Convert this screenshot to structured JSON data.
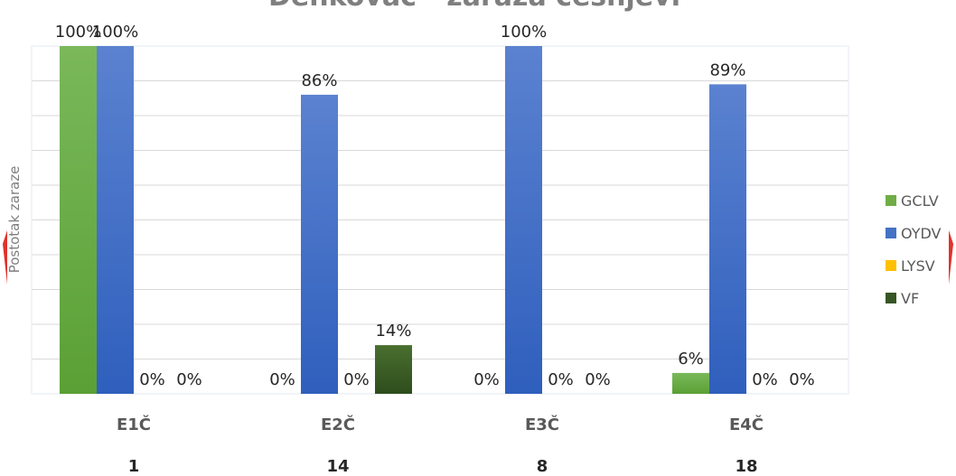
{
  "chart_data": {
    "type": "bar",
    "title": "Denkovac - zaraza ćešnjevi",
    "ylabel": "Postotak zaraze",
    "xlabel": "",
    "ylim": [
      0,
      100
    ],
    "grid": true,
    "legend_position": "right",
    "categories": [
      "E1Č",
      "E2Č",
      "E3Č",
      "E4Č"
    ],
    "category_counts": [
      "1",
      "14",
      "8",
      "18"
    ],
    "series": [
      {
        "name": "GCLV",
        "values": [
          100,
          0,
          0,
          6
        ],
        "labels": [
          "100%",
          "0%",
          "0%",
          "6%"
        ],
        "color": "#70ad47"
      },
      {
        "name": "OYDV",
        "values": [
          100,
          86,
          100,
          89
        ],
        "labels": [
          "100%",
          "86%",
          "100%",
          "89%"
        ],
        "color": "#4472c4"
      },
      {
        "name": "LYSV",
        "values": [
          0,
          0,
          0,
          0
        ],
        "labels": [
          "0%",
          "0%",
          "0%",
          "0%"
        ],
        "color": "#ffc000"
      },
      {
        "name": "VF",
        "values": [
          0,
          14,
          0,
          0
        ],
        "labels": [
          "0%",
          "14%",
          "0%",
          "0%"
        ],
        "color": "#375623"
      }
    ]
  }
}
